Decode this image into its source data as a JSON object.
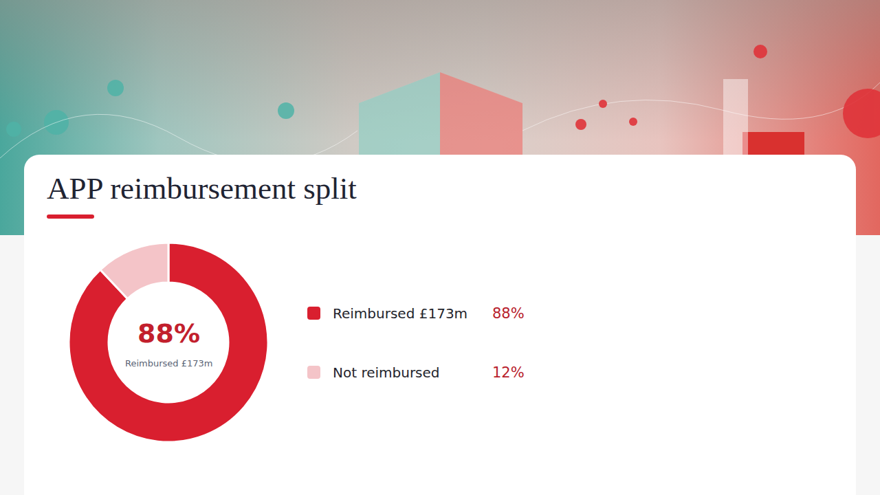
{
  "chart_data": {
    "type": "pie",
    "title": "APP reimbursement split",
    "categories": [
      "Reimbursed £173m",
      "Not reimbursed"
    ],
    "values": [
      88,
      12
    ],
    "value_labels": [
      "88%",
      "12%"
    ],
    "colors": [
      "#d91f2f",
      "#f4c4c8"
    ],
    "annotations": [
      "88%",
      "Reimbursed £173m"
    ],
    "legend": "right"
  }
}
